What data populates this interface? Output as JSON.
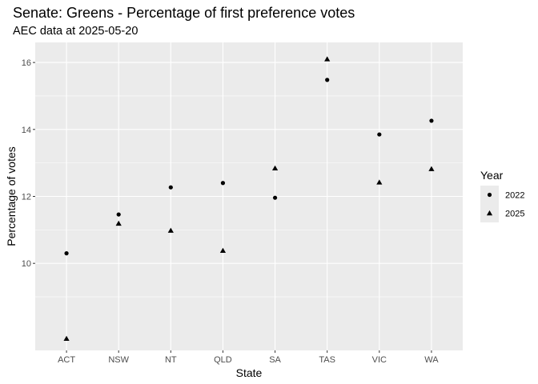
{
  "chart_data": {
    "type": "scatter",
    "title": "Senate: Greens - Percentage of first preference votes",
    "subtitle": "AEC data at 2025-05-20",
    "xlabel": "State",
    "ylabel": "Percentage of votes",
    "categories": [
      "ACT",
      "NSW",
      "NT",
      "QLD",
      "SA",
      "TAS",
      "VIC",
      "WA"
    ],
    "ylim": [
      7.4,
      16.6
    ],
    "yticks": [
      10,
      12,
      14,
      16
    ],
    "grid": true,
    "legend": {
      "title": "Year",
      "position": "right"
    },
    "series": [
      {
        "name": "2022",
        "shape": "circle",
        "values": [
          10.3,
          11.46,
          12.27,
          12.4,
          11.96,
          15.48,
          13.85,
          14.26
        ]
      },
      {
        "name": "2025",
        "shape": "triangle",
        "values": [
          7.75,
          11.19,
          10.98,
          10.38,
          12.84,
          16.1,
          12.42,
          12.82
        ]
      }
    ]
  }
}
